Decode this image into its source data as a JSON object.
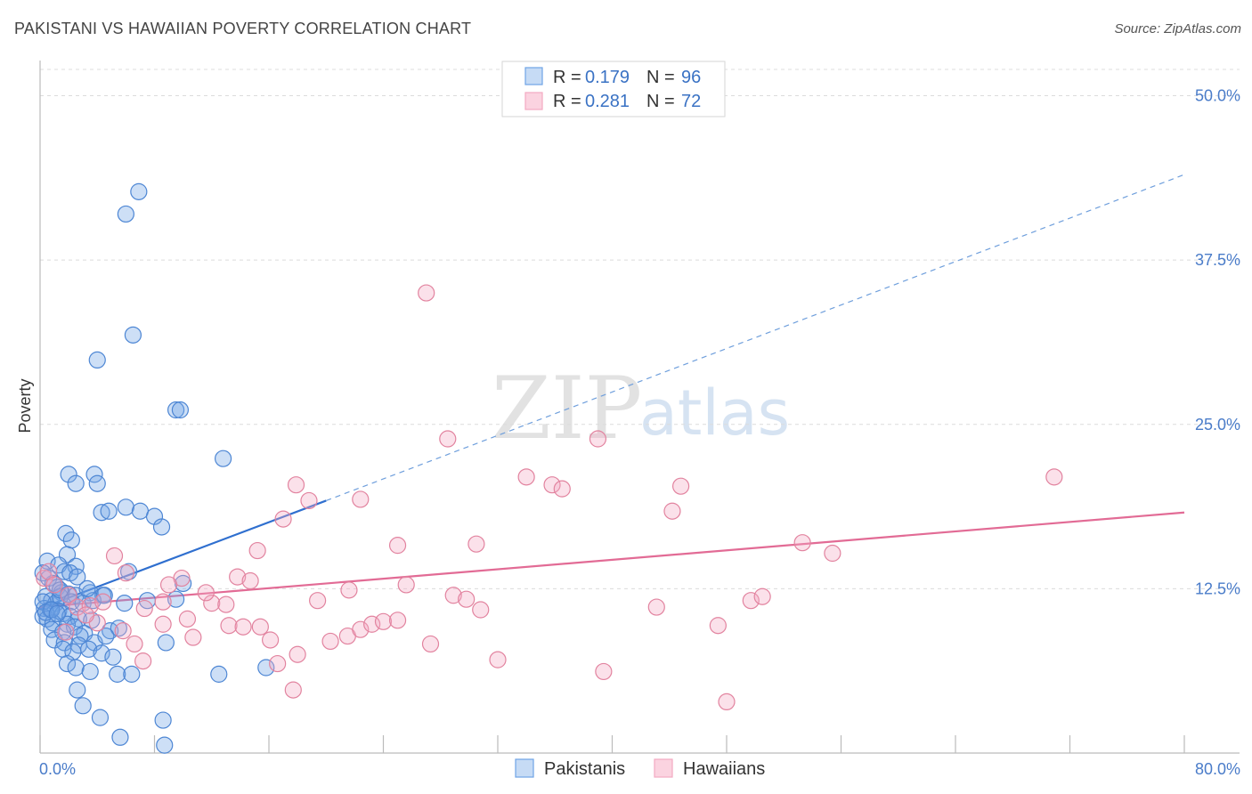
{
  "header": {
    "title": "PAKISTANI VS HAWAIIAN POVERTY CORRELATION CHART",
    "source": "Source: ZipAtlas.com"
  },
  "watermark": {
    "zip": "ZIP",
    "atlas": "atlas"
  },
  "legend_top": {
    "rows": [
      {
        "r_label": "R =",
        "r_value": "0.179",
        "n_label": "N =",
        "n_value": "96"
      },
      {
        "r_label": "R =",
        "r_value": "0.281",
        "n_label": "N =",
        "n_value": "72"
      }
    ]
  },
  "chart_data": {
    "type": "scatter",
    "title": "PAKISTANI VS HAWAIIAN POVERTY CORRELATION CHART",
    "xlabel": "",
    "ylabel": "Poverty",
    "xlim": [
      0,
      80
    ],
    "ylim": [
      0,
      52
    ],
    "x_tick_labels": [
      "0.0%",
      "80.0%"
    ],
    "y_ticks": [
      12.5,
      25.0,
      37.5,
      50.0
    ],
    "y_tick_labels": [
      "12.5%",
      "25.0%",
      "37.5%",
      "50.0%"
    ],
    "grid": true,
    "legend_position": "bottom-center",
    "series": [
      {
        "name": "Pakistanis",
        "color": "#6fa3e6",
        "stroke": "#4d86d4",
        "trend": {
          "x0": 0,
          "y0": 11.0,
          "x1": 20,
          "y1": 19.2,
          "dash_to_x": 80,
          "dash_to_y": 44.0,
          "color": "#2f6fcf"
        },
        "points": [
          [
            6.0,
            41.0
          ],
          [
            6.9,
            42.7
          ],
          [
            6.5,
            31.8
          ],
          [
            4.0,
            29.9
          ],
          [
            9.5,
            26.1
          ],
          [
            9.8,
            26.1
          ],
          [
            12.8,
            22.4
          ],
          [
            2.0,
            21.2
          ],
          [
            3.8,
            21.2
          ],
          [
            2.5,
            20.5
          ],
          [
            4.0,
            20.5
          ],
          [
            6.0,
            18.7
          ],
          [
            7.0,
            18.4
          ],
          [
            4.3,
            18.3
          ],
          [
            4.8,
            18.4
          ],
          [
            8.0,
            18.0
          ],
          [
            8.5,
            17.2
          ],
          [
            1.8,
            16.7
          ],
          [
            2.2,
            16.2
          ],
          [
            1.9,
            15.1
          ],
          [
            0.5,
            14.6
          ],
          [
            1.3,
            14.3
          ],
          [
            2.5,
            14.2
          ],
          [
            1.7,
            13.8
          ],
          [
            2.1,
            13.7
          ],
          [
            2.6,
            13.4
          ],
          [
            6.2,
            13.8
          ],
          [
            0.2,
            13.7
          ],
          [
            0.6,
            13.3
          ],
          [
            0.9,
            12.9
          ],
          [
            1.2,
            12.6
          ],
          [
            1.5,
            12.2
          ],
          [
            2.0,
            12.1
          ],
          [
            2.5,
            12.0
          ],
          [
            3.5,
            12.2
          ],
          [
            4.4,
            12.0
          ],
          [
            0.4,
            11.9
          ],
          [
            0.8,
            11.6
          ],
          [
            1.1,
            11.4
          ],
          [
            1.4,
            11.9
          ],
          [
            2.2,
            11.5
          ],
          [
            3.0,
            11.4
          ],
          [
            3.7,
            11.6
          ],
          [
            0.3,
            11.0
          ],
          [
            0.7,
            10.9
          ],
          [
            1.3,
            10.8
          ],
          [
            1.6,
            10.6
          ],
          [
            2.1,
            10.4
          ],
          [
            2.7,
            10.2
          ],
          [
            3.6,
            10.1
          ],
          [
            0.2,
            10.4
          ],
          [
            0.5,
            10.2
          ],
          [
            0.9,
            9.9
          ],
          [
            1.9,
            9.8
          ],
          [
            2.4,
            9.6
          ],
          [
            5.9,
            11.4
          ],
          [
            4.5,
            12.0
          ],
          [
            0.8,
            9.4
          ],
          [
            1.6,
            9.2
          ],
          [
            3.1,
            9.1
          ],
          [
            2.8,
            8.9
          ],
          [
            4.9,
            9.3
          ],
          [
            5.5,
            9.5
          ],
          [
            7.5,
            11.6
          ],
          [
            9.5,
            11.7
          ],
          [
            10.0,
            12.9
          ],
          [
            1.0,
            8.6
          ],
          [
            1.7,
            8.4
          ],
          [
            2.7,
            8.2
          ],
          [
            3.8,
            8.4
          ],
          [
            4.6,
            8.9
          ],
          [
            8.8,
            8.4
          ],
          [
            1.6,
            7.9
          ],
          [
            2.3,
            7.7
          ],
          [
            3.4,
            7.9
          ],
          [
            4.3,
            7.6
          ],
          [
            5.1,
            7.3
          ],
          [
            1.9,
            6.8
          ],
          [
            2.5,
            6.5
          ],
          [
            3.5,
            6.2
          ],
          [
            5.4,
            6.0
          ],
          [
            6.4,
            6.0
          ],
          [
            12.5,
            6.0
          ],
          [
            15.8,
            6.5
          ],
          [
            0.2,
            11.5
          ],
          [
            0.4,
            10.7
          ],
          [
            0.8,
            10.9
          ],
          [
            1.2,
            10.6
          ],
          [
            2.6,
            4.8
          ],
          [
            3.0,
            3.6
          ],
          [
            4.2,
            2.7
          ],
          [
            8.6,
            2.5
          ],
          [
            5.6,
            1.2
          ],
          [
            8.7,
            0.6
          ],
          [
            1.4,
            12.4
          ],
          [
            3.3,
            12.5
          ]
        ]
      },
      {
        "name": "Hawaiians",
        "color": "#f3a9c2",
        "stroke": "#e2839f",
        "trend": {
          "x0": 0,
          "y0": 11.1,
          "x1": 80,
          "y1": 18.3,
          "color": "#e26b95"
        },
        "points": [
          [
            27.0,
            35.0
          ],
          [
            28.5,
            23.9
          ],
          [
            39.0,
            23.9
          ],
          [
            34.0,
            21.0
          ],
          [
            44.8,
            20.3
          ],
          [
            70.9,
            21.0
          ],
          [
            35.8,
            20.4
          ],
          [
            36.5,
            20.1
          ],
          [
            17.9,
            20.4
          ],
          [
            18.8,
            19.2
          ],
          [
            22.4,
            19.3
          ],
          [
            44.2,
            18.4
          ],
          [
            17.0,
            17.8
          ],
          [
            30.5,
            15.9
          ],
          [
            25.0,
            15.8
          ],
          [
            53.3,
            16.0
          ],
          [
            55.4,
            15.2
          ],
          [
            5.2,
            15.0
          ],
          [
            15.2,
            15.4
          ],
          [
            6.0,
            13.7
          ],
          [
            9.9,
            13.3
          ],
          [
            13.8,
            13.4
          ],
          [
            25.6,
            12.8
          ],
          [
            21.6,
            12.4
          ],
          [
            28.9,
            12.0
          ],
          [
            29.8,
            11.7
          ],
          [
            30.8,
            10.9
          ],
          [
            0.3,
            13.3
          ],
          [
            0.6,
            13.8
          ],
          [
            1.0,
            12.8
          ],
          [
            2.0,
            12.0
          ],
          [
            2.6,
            11.1
          ],
          [
            3.5,
            11.2
          ],
          [
            4.4,
            11.5
          ],
          [
            7.3,
            11.0
          ],
          [
            8.6,
            11.5
          ],
          [
            10.3,
            10.2
          ],
          [
            12.0,
            11.4
          ],
          [
            13.0,
            11.3
          ],
          [
            11.6,
            12.2
          ],
          [
            43.1,
            11.1
          ],
          [
            49.7,
            11.6
          ],
          [
            50.5,
            11.9
          ],
          [
            5.8,
            9.3
          ],
          [
            8.6,
            9.8
          ],
          [
            13.2,
            9.7
          ],
          [
            14.2,
            9.6
          ],
          [
            15.4,
            9.6
          ],
          [
            16.1,
            8.6
          ],
          [
            10.7,
            8.8
          ],
          [
            6.6,
            8.3
          ],
          [
            7.2,
            7.0
          ],
          [
            20.3,
            8.5
          ],
          [
            21.5,
            8.9
          ],
          [
            22.4,
            9.4
          ],
          [
            23.2,
            9.8
          ],
          [
            24.0,
            10.0
          ],
          [
            25.0,
            10.1
          ],
          [
            27.3,
            8.3
          ],
          [
            47.4,
            9.7
          ],
          [
            18.0,
            7.5
          ],
          [
            16.6,
            6.8
          ],
          [
            32.0,
            7.1
          ],
          [
            39.4,
            6.2
          ],
          [
            17.7,
            4.8
          ],
          [
            48.0,
            3.9
          ],
          [
            4.0,
            9.9
          ],
          [
            3.2,
            10.5
          ],
          [
            1.8,
            9.2
          ],
          [
            9.0,
            12.8
          ],
          [
            14.7,
            13.1
          ],
          [
            19.4,
            11.6
          ]
        ]
      }
    ]
  }
}
